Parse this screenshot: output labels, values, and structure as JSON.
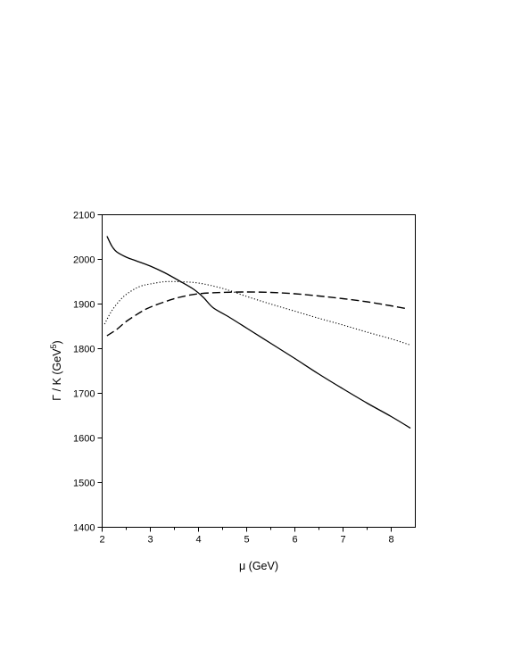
{
  "chart_data": {
    "type": "line",
    "title": "",
    "xlabel": "μ  (GeV)",
    "ylabel": "Γ / K   (GeV",
    "ylabel_sup": "5",
    "ylabel_close": ")",
    "xlim": [
      2,
      8.5
    ],
    "ylim": [
      1400,
      2100
    ],
    "xticks": [
      2,
      3,
      4,
      5,
      6,
      7,
      8
    ],
    "yticks": [
      1400,
      1500,
      1600,
      1700,
      1800,
      1900,
      2000,
      2100
    ],
    "xticks_minor": [
      2.5,
      3.5,
      4.5,
      5.5,
      6.5,
      7.5
    ],
    "grid": false,
    "legend": "none",
    "series": [
      {
        "style": "solid",
        "x": [
          2.1,
          2.2,
          2.3,
          2.5,
          2.7,
          3.0,
          3.3,
          3.6,
          3.9,
          4.1,
          4.3,
          4.6,
          5.0,
          5.5,
          6.0,
          6.5,
          7.0,
          7.5,
          8.0,
          8.4
        ],
        "y": [
          2052,
          2030,
          2017,
          2005,
          1997,
          1985,
          1970,
          1952,
          1933,
          1915,
          1892,
          1873,
          1846,
          1812,
          1778,
          1743,
          1710,
          1678,
          1648,
          1622
        ]
      },
      {
        "style": "dotted",
        "x": [
          2.05,
          2.2,
          2.4,
          2.6,
          2.8,
          3.0,
          3.3,
          3.6,
          4.0,
          4.5,
          5.0,
          5.5,
          6.0,
          6.5,
          7.0,
          7.5,
          8.0,
          8.4
        ],
        "y": [
          1855,
          1885,
          1912,
          1929,
          1940,
          1945,
          1950,
          1950,
          1947,
          1935,
          1917,
          1900,
          1884,
          1868,
          1853,
          1837,
          1822,
          1808
        ]
      },
      {
        "style": "dashed",
        "x": [
          2.1,
          2.3,
          2.5,
          2.8,
          3.0,
          3.3,
          3.6,
          4.0,
          4.5,
          5.0,
          5.5,
          6.0,
          6.5,
          7.0,
          7.5,
          8.0,
          8.3
        ],
        "y": [
          1829,
          1843,
          1861,
          1882,
          1893,
          1905,
          1915,
          1923,
          1926,
          1927,
          1926,
          1923,
          1918,
          1912,
          1905,
          1896,
          1890
        ]
      }
    ]
  }
}
